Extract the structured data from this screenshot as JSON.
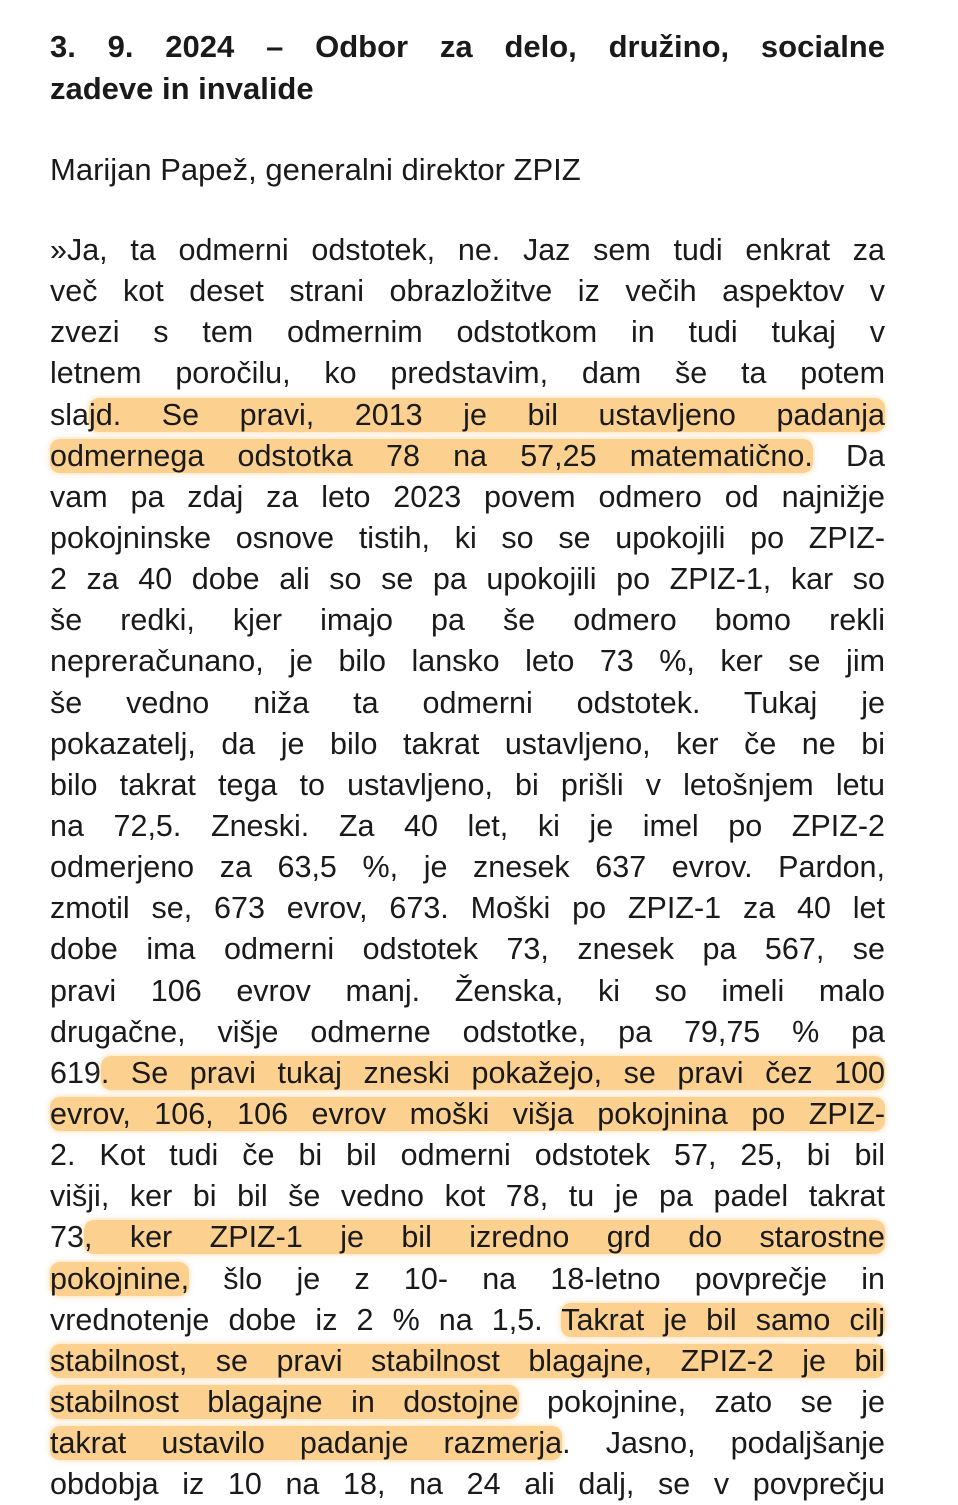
{
  "title": {
    "line1": "3. 9. 2024 – Odbor za delo, družino, socialne",
    "line2": "zadeve in invalide"
  },
  "author": "Marijan Papež, generalni direktor ZPIZ",
  "highlight_color": "#fab246",
  "lines": [
    [
      {
        "t": "»Ja, ta odmerni odstotek, ne. Jaz sem tudi enkrat za"
      }
    ],
    [
      {
        "t": "več kot deset strani obrazložitve iz večih aspektov v"
      }
    ],
    [
      {
        "t": "zvezi s tem odmernim odstotkom in tudi tukaj v"
      }
    ],
    [
      {
        "t": "letnem poročilu, ko predstavim, dam še ta potem"
      }
    ],
    [
      {
        "t": "sla"
      },
      {
        "t": "jd. Se pravi, 2013 je bil ustavljeno padanja",
        "hl": true
      }
    ],
    [
      {
        "t": "odmernega odstotka 78 na 57,25 matematično.",
        "hl": true
      },
      {
        "t": " Da"
      }
    ],
    [
      {
        "t": "vam pa zdaj za leto 2023 povem odmero od najnižje"
      }
    ],
    [
      {
        "t": "pokojninske osnove tistih, ki so se upokojili po ZPIZ-"
      }
    ],
    [
      {
        "t": "2 za 40 dobe ali so se pa upokojili po ZPIZ-1, kar so"
      }
    ],
    [
      {
        "t": "še redki, kjer imajo pa še odmero bomo rekli"
      }
    ],
    [
      {
        "t": "nepreračunano, je bilo lansko leto 73 %, ker se jim"
      }
    ],
    [
      {
        "t": "še vedno niža ta odmerni odstotek. Tukaj je"
      }
    ],
    [
      {
        "t": "pokazatelj, da je bilo takrat ustavljeno, ker če ne bi"
      }
    ],
    [
      {
        "t": "bilo takrat tega to ustavljeno, bi prišli v letošnjem letu"
      }
    ],
    [
      {
        "t": "na 72,5. Zneski. Za 40 let, ki je imel po ZPIZ-2"
      }
    ],
    [
      {
        "t": "odmerjeno za 63,5 %, je znesek 637 evrov. Pardon,"
      }
    ],
    [
      {
        "t": "zmotil se, 673 evrov, 673. Moški po ZPIZ-1 za 40 let"
      }
    ],
    [
      {
        "t": "dobe ima odmerni odstotek 73, znesek pa 567, se"
      }
    ],
    [
      {
        "t": "pravi 106 evrov manj. Ženska, ki so imeli malo"
      }
    ],
    [
      {
        "t": "drugačne, višje odmerne odstotke, pa 79,75 % pa"
      }
    ],
    [
      {
        "t": "619"
      },
      {
        "t": ". Se pravi tukaj zneski pokažejo, se pravi čez 100",
        "hl": true
      }
    ],
    [
      {
        "t": "evrov, 106, 106 evrov moški višja pokojnina po ZPIZ-",
        "hl": true
      }
    ],
    [
      {
        "t": "2. Kot tudi če bi bil odmerni odstotek 57, 25, bi bil"
      }
    ],
    [
      {
        "t": "višji, ker bi bil še vedno kot 78, tu je pa padel takrat"
      }
    ],
    [
      {
        "t": "73"
      },
      {
        "t": ", ker ZPIZ-1 je bil izredno grd do starostne",
        "hl": true
      }
    ],
    [
      {
        "t": "pokojnine,",
        "hl": true
      },
      {
        "t": " šlo je z 10- na 18-letno povprečje in"
      }
    ],
    [
      {
        "t": "vrednotenje dobe iz 2 % na 1,5. "
      },
      {
        "t": "Takrat je bil samo cilj",
        "hl": true
      }
    ],
    [
      {
        "t": "stabilnost, se pravi stabilnost blagajne, ZPIZ-2 je bil",
        "hl": true
      }
    ],
    [
      {
        "t": "stabilnost blagajne in dostojne",
        "hl": true
      },
      {
        "t": " pokojnine, zato se je"
      }
    ],
    [
      {
        "t": "takrat ustavilo padanje razmerja",
        "hl": true
      },
      {
        "t": ". Jasno, podaljšanje"
      }
    ],
    [
      {
        "t": "obdobja iz 10 na 18, na 24 ali dalj, se v povprečju"
      }
    ]
  ]
}
